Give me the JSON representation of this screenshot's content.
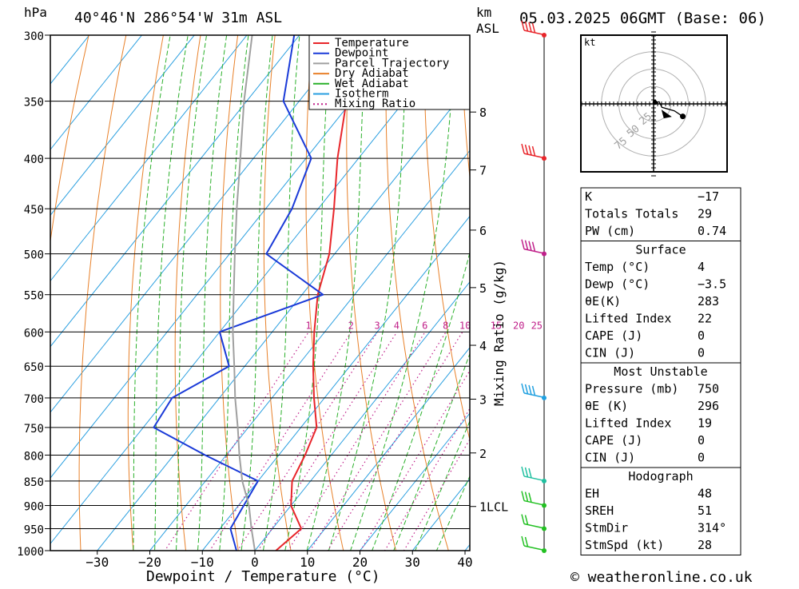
{
  "header": {
    "left_unit": "hPa",
    "location": "40°46'N 286°54'W 31m ASL",
    "km_unit": "km",
    "asl_unit": "ASL",
    "date": "05.03.2025 06GMT (Base: 06)"
  },
  "footer": {
    "credit": "© weatheronline.co.uk"
  },
  "chart_data": {
    "type": "line",
    "subtype": "skew-T log-P diagram",
    "xlabel": "Dewpoint / Temperature (°C)",
    "ylabel": "hPa",
    "mixing_ratio_label": "Mixing Ratio (g/kg)",
    "x_ticks": [
      -30,
      -20,
      -10,
      0,
      10,
      20,
      30,
      40
    ],
    "pressure_ticks": [
      300,
      350,
      400,
      450,
      500,
      550,
      600,
      650,
      700,
      750,
      800,
      850,
      900,
      950,
      1000
    ],
    "height_ticks": [
      {
        "label": "8",
        "p": 359
      },
      {
        "label": "7",
        "p": 411
      },
      {
        "label": "6",
        "p": 473
      },
      {
        "label": "5",
        "p": 541
      },
      {
        "label": "4",
        "p": 619
      },
      {
        "label": "3",
        "p": 702
      },
      {
        "label": "2",
        "p": 796
      },
      {
        "label": "1LCL",
        "p": 902
      }
    ],
    "mixing_ratio_values": [
      "1",
      "2",
      "3",
      "4",
      "6",
      "8",
      "10",
      "15",
      "20",
      "25"
    ],
    "legend": [
      {
        "name": "Temperature",
        "color": "#e8252a",
        "style": "solid"
      },
      {
        "name": "Dewpoint",
        "color": "#1a3ad8",
        "style": "solid"
      },
      {
        "name": "Parcel Trajectory",
        "color": "#a0a0a0",
        "style": "solid"
      },
      {
        "name": "Dry Adiabat",
        "color": "#e8812a",
        "style": "solid"
      },
      {
        "name": "Wet Adiabat",
        "color": "#2ab02a",
        "style": "solid"
      },
      {
        "name": "Isotherm",
        "color": "#2a9fe0",
        "style": "solid"
      },
      {
        "name": "Mixing Ratio",
        "color": "#c0208a",
        "style": "dotted"
      }
    ],
    "series": [
      {
        "name": "Temperature",
        "points": [
          [
            1000,
            4
          ],
          [
            950,
            5.5
          ],
          [
            900,
            0
          ],
          [
            850,
            -3.5
          ],
          [
            800,
            -5
          ],
          [
            750,
            -7
          ],
          [
            700,
            -12
          ],
          [
            650,
            -17
          ],
          [
            600,
            -22
          ],
          [
            550,
            -27
          ],
          [
            500,
            -31
          ],
          [
            450,
            -37
          ],
          [
            400,
            -44
          ],
          [
            350,
            -51
          ],
          [
            300,
            -58
          ]
        ]
      },
      {
        "name": "Dewpoint",
        "points": [
          [
            1000,
            -3.5
          ],
          [
            950,
            -8
          ],
          [
            900,
            -9
          ],
          [
            850,
            -10
          ],
          [
            800,
            -24
          ],
          [
            750,
            -38
          ],
          [
            700,
            -39
          ],
          [
            650,
            -33
          ],
          [
            600,
            -40
          ],
          [
            550,
            -26
          ],
          [
            500,
            -43
          ],
          [
            450,
            -45
          ],
          [
            400,
            -49
          ],
          [
            350,
            -63
          ],
          [
            300,
            -71
          ]
        ]
      },
      {
        "name": "Parcel Trajectory",
        "points": [
          [
            1000,
            0
          ],
          [
            950,
            -4
          ],
          [
            900,
            -8
          ],
          [
            850,
            -13
          ],
          [
            800,
            -17.5
          ],
          [
            750,
            -22
          ],
          [
            700,
            -27
          ],
          [
            650,
            -32
          ],
          [
            600,
            -37.5
          ],
          [
            550,
            -43
          ],
          [
            500,
            -49
          ],
          [
            450,
            -55.5
          ],
          [
            400,
            -62.5
          ],
          [
            350,
            -70.5
          ],
          [
            300,
            -79
          ]
        ]
      }
    ],
    "xlim": [
      -40,
      40
    ],
    "ylim": [
      1000,
      300
    ],
    "wind_barbs": [
      {
        "p": 1000,
        "color": "#22c022",
        "speed_kt": 20
      },
      {
        "p": 950,
        "color": "#22c022",
        "speed_kt": 20
      },
      {
        "p": 900,
        "color": "#22c022",
        "speed_kt": 25
      },
      {
        "p": 850,
        "color": "#20c0a0",
        "speed_kt": 25
      },
      {
        "p": 700,
        "color": "#20a0e0",
        "speed_kt": 35
      },
      {
        "p": 500,
        "color": "#c0208a",
        "speed_kt": 40
      },
      {
        "p": 400,
        "color": "#e8252a",
        "speed_kt": 45
      },
      {
        "p": 300,
        "color": "#e8252a",
        "speed_kt": 60
      }
    ],
    "hodograph": {
      "unit_label": "kt",
      "ring_labels": [
        "25",
        "50",
        "75"
      ],
      "trace": [
        [
          2,
          2
        ],
        [
          8,
          3
        ],
        [
          12,
          -5
        ],
        [
          30,
          -10
        ],
        [
          42,
          -18
        ]
      ],
      "storm_motion": [
        17,
        -14
      ]
    }
  },
  "indices": {
    "top": [
      {
        "label": "K",
        "value": "-17"
      },
      {
        "label": "Totals Totals",
        "value": "29"
      },
      {
        "label": "PW (cm)",
        "value": "0.74"
      }
    ],
    "surface": {
      "title": "Surface",
      "rows": [
        {
          "label": "Temp (°C)",
          "value": "4"
        },
        {
          "label": "Dewp (°C)",
          "value": "-3.5"
        },
        {
          "label": "θE(K)",
          "value": "283"
        },
        {
          "label": "Lifted Index",
          "value": "22"
        },
        {
          "label": "CAPE (J)",
          "value": "0"
        },
        {
          "label": "CIN (J)",
          "value": "0"
        }
      ]
    },
    "most_unstable": {
      "title": "Most Unstable",
      "rows": [
        {
          "label": "Pressure (mb)",
          "value": "750"
        },
        {
          "label": "θE (K)",
          "value": "296"
        },
        {
          "label": "Lifted Index",
          "value": "19"
        },
        {
          "label": "CAPE (J)",
          "value": "0"
        },
        {
          "label": "CIN (J)",
          "value": "0"
        }
      ]
    },
    "hodograph": {
      "title": "Hodograph",
      "rows": [
        {
          "label": "EH",
          "value": "48"
        },
        {
          "label": "SREH",
          "value": "51"
        },
        {
          "label": "StmDir",
          "value": "314°"
        },
        {
          "label": "StmSpd (kt)",
          "value": "28"
        }
      ]
    }
  }
}
